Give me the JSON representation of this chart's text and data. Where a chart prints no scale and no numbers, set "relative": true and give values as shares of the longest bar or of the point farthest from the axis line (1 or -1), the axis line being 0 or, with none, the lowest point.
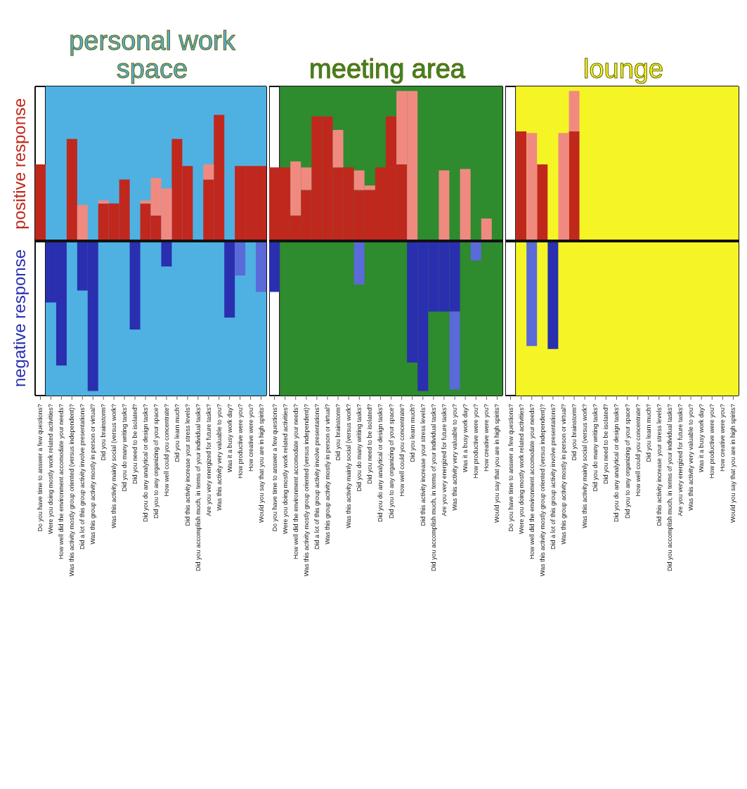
{
  "chart_data": [
    {
      "type": "bar",
      "title": "personal work space",
      "relative": true,
      "stacked": true,
      "grid": "x",
      "tick_labels": "x",
      "annotations": [
        "positive response",
        "negative response"
      ],
      "bands": [
        {
          "axis": "x",
          "from": "Were you doing mostly work related activities?",
          "to": "Would you say that you are in high spirits?",
          "color": "#4fb1e2"
        }
      ],
      "categories": [
        "Do you have time to answer a few questions?",
        "Were you doing mostly work related activities?",
        "How well did the environment accomodate your needs?",
        "Was this activity mostly group oriented (versus independent)?",
        "Did a lot of this group activity involve presentations?",
        "Was this group activity mostly in person or virtual?",
        "Did you brainstorm?",
        "Was this activity mainly social (versus work?",
        "Did you do many writing tasks?",
        "Did you need to be isolated?",
        "Did you do any analytical or design tasks?",
        "Did you to any organizing of your space?",
        "How well could you concentrate?",
        "Did you learn much?",
        "Did this activity increase your stress levels?",
        "Did you accomplish much, in terms of your individual tasks?",
        "Are you very energized for future tasks?",
        "Was this activity very valuable to you?",
        "Was it a busy work day?",
        "How productive were you?",
        "How creative were you?",
        "Would you say that you are in high spirits?"
      ],
      "series": [
        {
          "color": "#c0281e",
          "values": [
            0.51,
            null,
            null,
            0.68,
            null,
            null,
            0.25,
            0.25,
            0.41,
            null,
            0.25,
            0.17,
            null,
            0.68,
            0.5,
            null,
            0.41,
            0.84,
            null,
            0.5,
            0.5,
            0.5
          ]
        },
        {
          "color": "#f08a80",
          "values": [
            null,
            null,
            null,
            null,
            0.24,
            null,
            0.02,
            null,
            null,
            null,
            0.02,
            0.25,
            0.35,
            null,
            null,
            null,
            0.1,
            null,
            null,
            null,
            null,
            null
          ]
        },
        {
          "color": "#2a2fb0",
          "values": [
            null,
            -0.41,
            -0.83,
            null,
            -0.33,
            -1,
            null,
            null,
            null,
            -0.59,
            null,
            null,
            -0.17,
            null,
            null,
            null,
            null,
            null,
            -0.51,
            null,
            null,
            null
          ]
        },
        {
          "color": "#5a6ad8",
          "values": [
            null,
            null,
            null,
            null,
            null,
            null,
            null,
            null,
            null,
            null,
            null,
            null,
            null,
            null,
            null,
            null,
            null,
            null,
            null,
            -0.23,
            null,
            -0.34
          ]
        }
      ]
    },
    {
      "type": "bar",
      "title": "meeting area",
      "relative": true,
      "stacked": true,
      "grid": "x",
      "tick_labels": "x",
      "bands": [
        {
          "axis": "x",
          "from": "Were you doing mostly work related activities?",
          "to": "Would you say that you are in high spirits?",
          "color": "#2e8b2e"
        }
      ],
      "categories": [
        "Do you have time to answer a few questions?",
        "Were you doing mostly work related activities?",
        "How well did the environment accomodate your needs?",
        "Was this activity mostly group oriented (versus independent)?",
        "Did a lot of this group activity involve presentations?",
        "Was this group activity mostly in person or virtual?",
        "Did you brainstorm?",
        "Was this activity mainly social (versus work?",
        "Did you do many writing tasks?",
        "Did you need to be isolated?",
        "Did you do any analytical or design tasks?",
        "Did you to any organizing of your space?",
        "How well could you concentrate?",
        "Did you learn much?",
        "Did this activity increase your stress levels?",
        "Did you accomplish much, in terms of your individual tasks?",
        "Are you very energized for future tasks?",
        "Was this activity very valuable to you?",
        "Was it a busy work day?",
        "How productive were you?",
        "How creative were you?",
        "Would you say that you are in high spirits?"
      ],
      "series": [
        {
          "color": "#c0281e",
          "values": [
            0.49,
            0.49,
            0.17,
            0.34,
            0.83,
            0.83,
            0.49,
            0.49,
            0.34,
            0.34,
            0.49,
            0.83,
            0.51,
            null,
            null,
            null,
            null,
            null,
            null,
            null,
            null,
            null
          ]
        },
        {
          "color": "#f08a80",
          "values": [
            null,
            null,
            0.36,
            0.15,
            null,
            null,
            0.25,
            null,
            0.13,
            0.03,
            null,
            null,
            0.49,
            1,
            null,
            null,
            0.47,
            null,
            0.48,
            null,
            0.15,
            null
          ]
        },
        {
          "color": "#2a2fb0",
          "values": [
            -0.34,
            null,
            null,
            null,
            null,
            null,
            null,
            null,
            null,
            null,
            null,
            null,
            null,
            -0.81,
            -1,
            -0.47,
            -0.47,
            -0.47,
            null,
            null,
            null,
            null
          ]
        },
        {
          "color": "#5a6ad8",
          "values": [
            null,
            null,
            null,
            null,
            null,
            null,
            null,
            null,
            -0.29,
            null,
            null,
            null,
            null,
            null,
            null,
            null,
            null,
            -0.52,
            null,
            -0.13,
            null,
            null
          ]
        }
      ]
    },
    {
      "type": "bar",
      "title": "lounge",
      "relative": true,
      "stacked": true,
      "grid": "x",
      "tick_labels": "x",
      "bands": [
        {
          "axis": "x",
          "from": "Were you doing mostly work related activities?",
          "to": "Would you say that you are in high spirits?",
          "color": "#f5f526"
        }
      ],
      "categories": [
        "Do you have time to answer a few questions?",
        "Were you doing mostly work related activities?",
        "How well did the environment accomodate your needs?",
        "Was this activity mostly group oriented (versus independent)?",
        "Did a lot of this group activity involve presentations?",
        "Was this group activity mostly in person or virtual?",
        "Did you brainstorm?",
        "Was this activity mainly social (versus work?",
        "Did you do many writing tasks?",
        "Did you need to be isolated?",
        "Did you do any analytical or design tasks?",
        "Did you to any organizing of your space?",
        "How well could you concentrate?",
        "Did you learn much?",
        "Did this activity increase your stress levels?",
        "Did you accomplish much, in terms of your individual tasks?",
        "Are you very energized for future tasks?",
        "Was this activity very valuable to you?",
        "Was it a busy work day?",
        "How productive were you?",
        "How creative were you?",
        "Would you say that you are in high spirits?"
      ],
      "series": [
        {
          "color": "#c0281e",
          "values": [
            null,
            0.73,
            null,
            0.51,
            null,
            null,
            0.73,
            null,
            null,
            null,
            null,
            null,
            null,
            null,
            null,
            null,
            null,
            null,
            null,
            null,
            null,
            null
          ]
        },
        {
          "color": "#f08a80",
          "values": [
            null,
            null,
            0.72,
            null,
            null,
            0.72,
            0.27,
            null,
            null,
            null,
            null,
            null,
            null,
            null,
            null,
            null,
            null,
            null,
            null,
            null,
            null,
            null
          ]
        },
        {
          "color": "#2a2fb0",
          "values": [
            null,
            null,
            null,
            null,
            -0.72,
            null,
            null,
            null,
            null,
            null,
            null,
            null,
            null,
            null,
            null,
            null,
            null,
            null,
            null,
            null,
            null,
            null
          ]
        },
        {
          "color": "#5a6ad8",
          "values": [
            null,
            null,
            -0.7,
            null,
            null,
            null,
            null,
            null,
            null,
            null,
            null,
            null,
            null,
            null,
            null,
            null,
            null,
            null,
            null,
            null,
            null,
            null
          ]
        }
      ]
    }
  ]
}
